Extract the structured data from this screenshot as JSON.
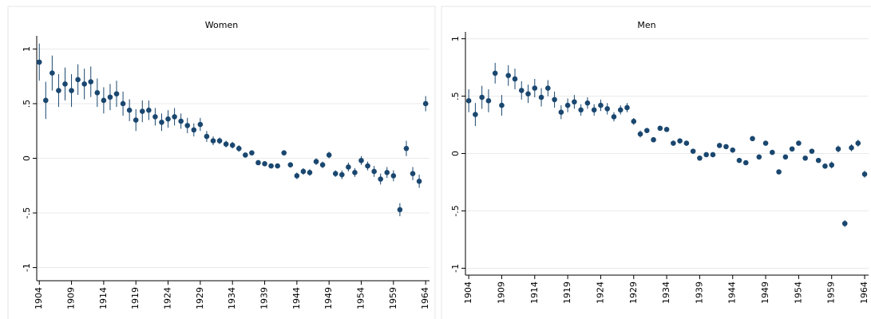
{
  "chart_data": [
    {
      "type": "errorbar",
      "title": "Women",
      "color": "#1a476f",
      "grid": true,
      "x": [
        1904,
        1905,
        1906,
        1907,
        1908,
        1909,
        1910,
        1911,
        1912,
        1913,
        1914,
        1915,
        1916,
        1917,
        1918,
        1919,
        1920,
        1921,
        1922,
        1923,
        1924,
        1925,
        1926,
        1927,
        1928,
        1929,
        1930,
        1931,
        1932,
        1933,
        1934,
        1935,
        1936,
        1937,
        1938,
        1939,
        1940,
        1941,
        1942,
        1943,
        1944,
        1945,
        1946,
        1947,
        1948,
        1949,
        1950,
        1951,
        1952,
        1953,
        1954,
        1955,
        1956,
        1957,
        1958,
        1959,
        1960,
        1961,
        1962,
        1963,
        1964
      ],
      "values": [
        0.88,
        0.53,
        0.78,
        0.62,
        0.68,
        0.62,
        0.72,
        0.68,
        0.7,
        0.6,
        0.53,
        0.56,
        0.59,
        0.5,
        0.44,
        0.35,
        0.43,
        0.44,
        0.38,
        0.33,
        0.36,
        0.38,
        0.34,
        0.3,
        0.26,
        0.31,
        0.2,
        0.16,
        0.16,
        0.13,
        0.12,
        0.09,
        0.03,
        0.05,
        -0.04,
        -0.05,
        -0.07,
        -0.07,
        0.05,
        -0.06,
        -0.16,
        -0.12,
        -0.13,
        -0.03,
        -0.06,
        0.03,
        -0.14,
        -0.15,
        -0.08,
        -0.13,
        -0.02,
        -0.07,
        -0.12,
        -0.19,
        -0.13,
        -0.16,
        -0.47,
        0.09,
        -0.14,
        -0.21,
        0.5
      ],
      "errors": [
        0.17,
        0.17,
        0.16,
        0.15,
        0.15,
        0.15,
        0.14,
        0.14,
        0.14,
        0.13,
        0.12,
        0.12,
        0.12,
        0.11,
        0.1,
        0.1,
        0.1,
        0.09,
        0.08,
        0.08,
        0.08,
        0.08,
        0.07,
        0.07,
        0.06,
        0.06,
        0.05,
        0.04,
        0.03,
        0.03,
        0.03,
        0.03,
        0.02,
        0.02,
        0.02,
        0.02,
        0.02,
        0.02,
        0.02,
        0.02,
        0.03,
        0.03,
        0.03,
        0.03,
        0.03,
        0.03,
        0.03,
        0.04,
        0.04,
        0.04,
        0.04,
        0.04,
        0.05,
        0.05,
        0.05,
        0.05,
        0.06,
        0.07,
        0.06,
        0.06,
        0.07
      ],
      "xlim": [
        1903.6,
        1964.6
      ],
      "xticks": [
        1904,
        1909,
        1914,
        1919,
        1924,
        1929,
        1934,
        1939,
        1944,
        1949,
        1954,
        1959,
        1964
      ],
      "ylim": [
        -1.12,
        1.12
      ],
      "yticks": [
        {
          "value": -1,
          "label": "-1"
        },
        {
          "value": -0.5,
          "label": "-.5"
        },
        0,
        {
          "value": 0.5,
          "label": ".5"
        },
        1
      ]
    },
    {
      "type": "errorbar",
      "title": "Men",
      "color": "#1a476f",
      "grid": true,
      "x": [
        1904,
        1905,
        1906,
        1907,
        1908,
        1909,
        1910,
        1911,
        1912,
        1913,
        1914,
        1915,
        1916,
        1917,
        1918,
        1919,
        1920,
        1921,
        1922,
        1923,
        1924,
        1925,
        1926,
        1927,
        1928,
        1929,
        1930,
        1931,
        1932,
        1933,
        1934,
        1935,
        1936,
        1937,
        1938,
        1939,
        1940,
        1941,
        1942,
        1943,
        1944,
        1945,
        1946,
        1947,
        1948,
        1949,
        1950,
        1951,
        1952,
        1953,
        1954,
        1955,
        1956,
        1957,
        1958,
        1959,
        1960,
        1961,
        1962,
        1963,
        1964
      ],
      "values": [
        0.46,
        0.34,
        0.49,
        0.46,
        0.7,
        0.42,
        0.68,
        0.65,
        0.55,
        0.52,
        0.57,
        0.49,
        0.57,
        0.47,
        0.36,
        0.42,
        0.45,
        0.38,
        0.44,
        0.38,
        0.42,
        0.39,
        0.32,
        0.38,
        0.4,
        0.28,
        0.17,
        0.2,
        0.12,
        0.22,
        0.21,
        0.09,
        0.11,
        0.09,
        0.02,
        -0.04,
        -0.01,
        -0.01,
        0.07,
        0.06,
        0.03,
        -0.06,
        -0.08,
        0.13,
        -0.03,
        0.09,
        0.01,
        -0.16,
        -0.03,
        0.04,
        0.09,
        -0.04,
        0.02,
        -0.06,
        -0.11,
        -0.1,
        0.04,
        -0.61,
        0.05,
        0.09,
        -0.18
      ],
      "errors": [
        0.1,
        0.1,
        0.1,
        0.1,
        0.09,
        0.09,
        0.09,
        0.09,
        0.08,
        0.08,
        0.08,
        0.08,
        0.07,
        0.07,
        0.06,
        0.06,
        0.06,
        0.05,
        0.05,
        0.05,
        0.05,
        0.05,
        0.04,
        0.04,
        0.04,
        0.03,
        0.03,
        0.02,
        0.02,
        0.02,
        0.02,
        0.02,
        0.02,
        0.02,
        0.02,
        0.02,
        0.02,
        0.02,
        0.02,
        0.02,
        0.02,
        0.02,
        0.02,
        0.02,
        0.02,
        0.02,
        0.02,
        0.02,
        0.02,
        0.02,
        0.02,
        0.02,
        0.02,
        0.02,
        0.02,
        0.03,
        0.03,
        0.03,
        0.03,
        0.03,
        0.03
      ],
      "xlim": [
        1903.5,
        1964.6
      ],
      "xticks": [
        1904,
        1909,
        1914,
        1919,
        1924,
        1929,
        1934,
        1939,
        1944,
        1949,
        1954,
        1959,
        1964
      ],
      "ylim": [
        -1.06,
        1.06
      ],
      "yticks": [
        {
          "value": -1,
          "label": "-1"
        },
        {
          "value": -0.5,
          "label": "-.5"
        },
        0,
        {
          "value": 0.5,
          "label": ".5"
        },
        1
      ]
    }
  ]
}
